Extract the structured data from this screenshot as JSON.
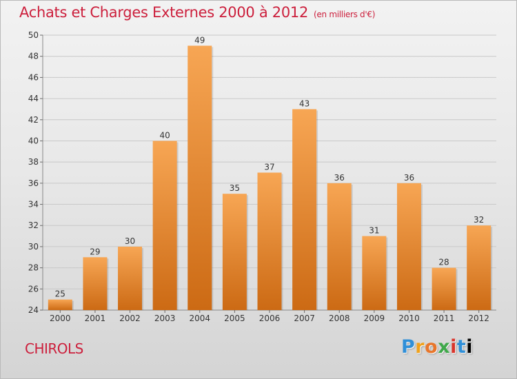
{
  "header": {
    "title": "Achats et Charges Externes 2000 à 2012",
    "subtitle": "(en milliers d'€)"
  },
  "commune": "CHIROLS",
  "logo": {
    "text": "Proxiti"
  },
  "colors": {
    "title": "#cc1f3c",
    "bar_top": "#f7a654",
    "bar_bottom": "#cc6a14",
    "grid": "#c8c8c8"
  },
  "chart_data": {
    "type": "bar",
    "categories": [
      "2000",
      "2001",
      "2002",
      "2003",
      "2004",
      "2005",
      "2006",
      "2007",
      "2008",
      "2009",
      "2010",
      "2011",
      "2012"
    ],
    "values": [
      25,
      29,
      30,
      40,
      49,
      35,
      37,
      43,
      36,
      31,
      36,
      28,
      32
    ],
    "ylim": [
      24,
      50
    ],
    "yticks": [
      24,
      26,
      28,
      30,
      32,
      34,
      36,
      38,
      40,
      42,
      44,
      46,
      48,
      50
    ],
    "grid": true,
    "data_labels": true
  }
}
